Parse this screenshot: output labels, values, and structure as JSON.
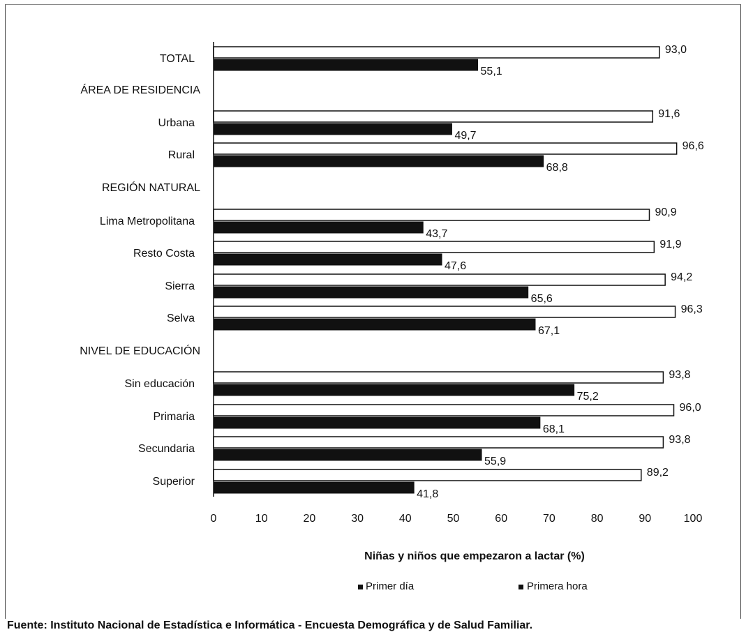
{
  "chart_data": {
    "type": "bar",
    "orientation": "horizontal",
    "rows": [
      {
        "kind": "category",
        "label": "TOTAL",
        "primer_dia": 93.0,
        "primera_hora": 55.1,
        "label_dia": "93,0",
        "label_hora": "55,1"
      },
      {
        "kind": "header",
        "label": "ÁREA DE RESIDENCIA"
      },
      {
        "kind": "category",
        "label": "Urbana",
        "primer_dia": 91.6,
        "primera_hora": 49.7,
        "label_dia": "91,6",
        "label_hora": "49,7"
      },
      {
        "kind": "category",
        "label": "Rural",
        "primer_dia": 96.6,
        "primera_hora": 68.8,
        "label_dia": "96,6",
        "label_hora": "68,8"
      },
      {
        "kind": "header",
        "label": "REGIÓN NATURAL"
      },
      {
        "kind": "category",
        "label": "Lima Metropolitana",
        "primer_dia": 90.9,
        "primera_hora": 43.7,
        "label_dia": "90,9",
        "label_hora": "43,7"
      },
      {
        "kind": "category",
        "label": "Resto Costa",
        "primer_dia": 91.9,
        "primera_hora": 47.6,
        "label_dia": "91,9",
        "label_hora": "47,6"
      },
      {
        "kind": "category",
        "label": "Sierra",
        "primer_dia": 94.2,
        "primera_hora": 65.6,
        "label_dia": "94,2",
        "label_hora": "65,6"
      },
      {
        "kind": "category",
        "label": "Selva",
        "primer_dia": 96.3,
        "primera_hora": 67.1,
        "label_dia": "96,3",
        "label_hora": "67,1"
      },
      {
        "kind": "header",
        "label": "NIVEL DE EDUCACIÓN"
      },
      {
        "kind": "category",
        "label": "Sin educación",
        "primer_dia": 93.8,
        "primera_hora": 75.2,
        "label_dia": "93,8",
        "label_hora": "75,2"
      },
      {
        "kind": "category",
        "label": "Primaria",
        "primer_dia": 96.0,
        "primera_hora": 68.1,
        "label_dia": "96,0",
        "label_hora": "68,1"
      },
      {
        "kind": "category",
        "label": "Secundaria",
        "primer_dia": 93.8,
        "primera_hora": 55.9,
        "label_dia": "93,8",
        "label_hora": "55,9"
      },
      {
        "kind": "category",
        "label": "Superior",
        "primer_dia": 89.2,
        "primera_hora": 41.8,
        "label_dia": "89,2",
        "label_hora": "41,8"
      }
    ],
    "series": [
      {
        "name": "Primer día",
        "key": "primer_dia",
        "color": "#ffffff",
        "stroke": "#111111"
      },
      {
        "name": "Primera hora",
        "key": "primera_hora",
        "color": "#111111",
        "stroke": "#111111"
      }
    ],
    "xlabel": "Niñas y niños que empezaron a lactar (%)",
    "xlim": [
      0,
      100
    ],
    "xticks": [
      0,
      10,
      20,
      30,
      40,
      50,
      60,
      70,
      80,
      90,
      100
    ],
    "legend_position": "bottom",
    "grid": false
  },
  "source": "Fuente: Instituto Nacional de Estadística e Informática - Encuesta Demográfica y de Salud Familiar."
}
